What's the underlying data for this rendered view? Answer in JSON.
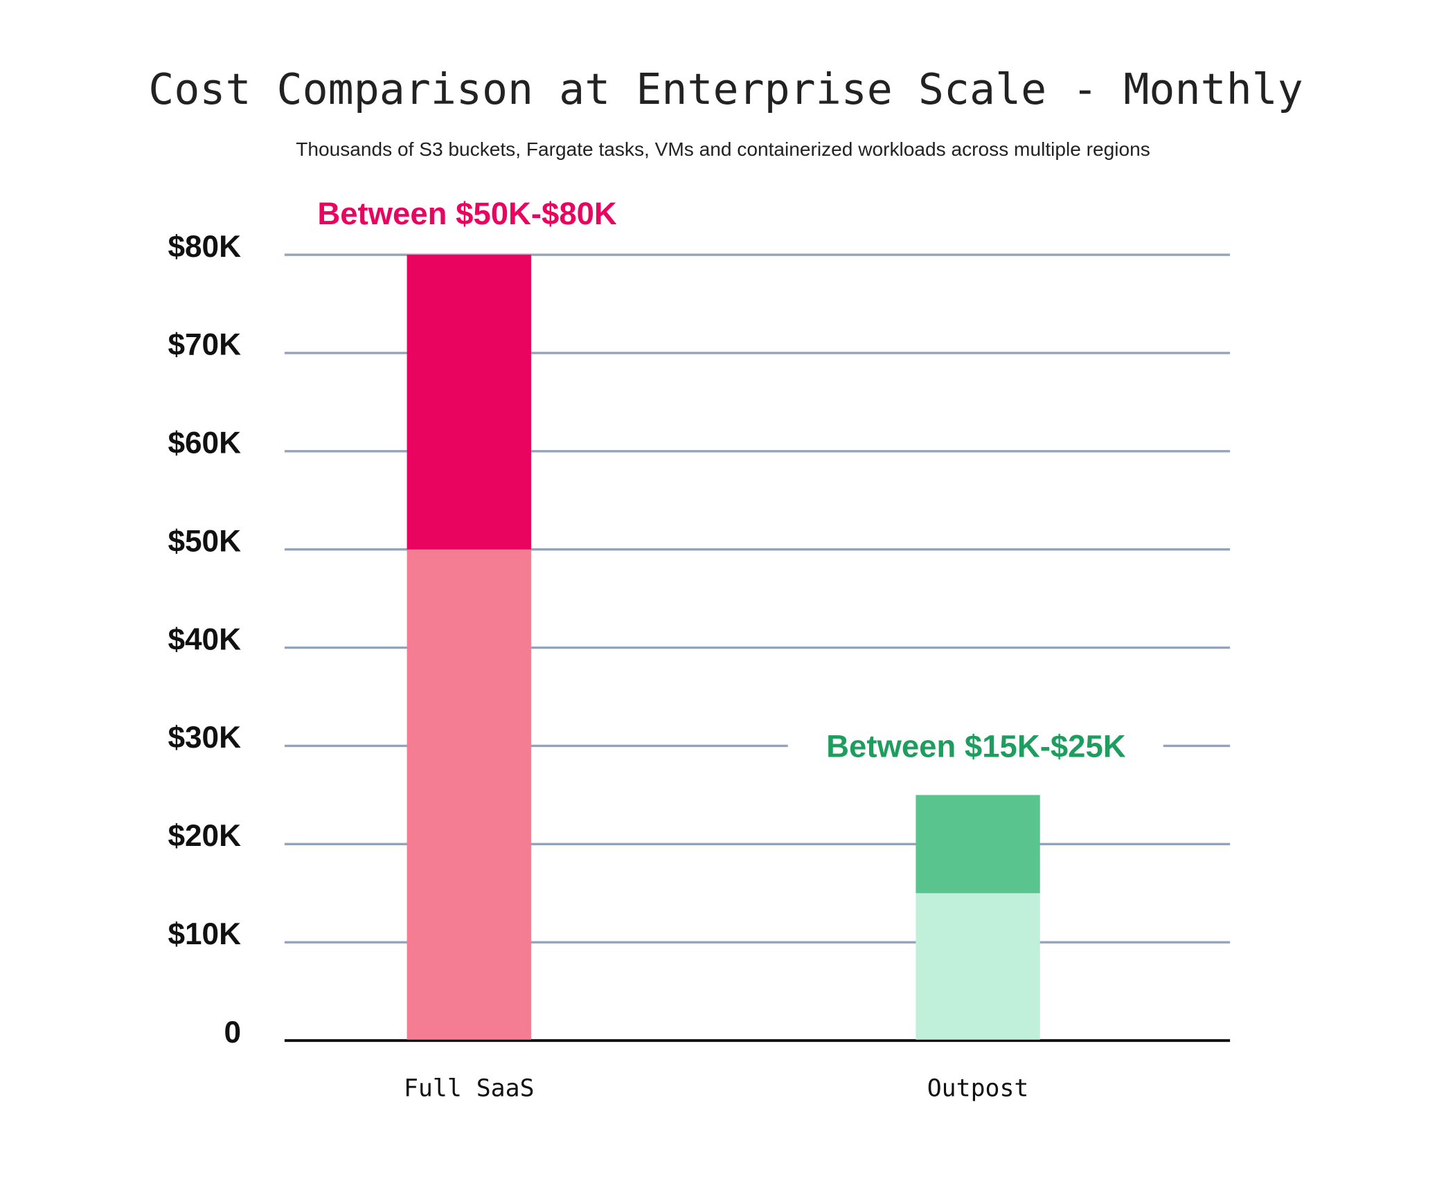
{
  "chart_data": {
    "type": "bar",
    "stacked": true,
    "title": "Cost Comparison at Enterprise Scale - Monthly",
    "subtitle": "Thousands of S3 buckets, Fargate tasks, VMs and containerized workloads across multiple regions",
    "xlabel": "",
    "ylabel": "",
    "ylim": [
      0,
      80
    ],
    "grid": true,
    "yticks": [
      {
        "value": 0,
        "label": "0"
      },
      {
        "value": 10,
        "label": "$10K"
      },
      {
        "value": 20,
        "label": "$20K"
      },
      {
        "value": 30,
        "label": "$30K"
      },
      {
        "value": 40,
        "label": "$40K"
      },
      {
        "value": 50,
        "label": "$50K"
      },
      {
        "value": 60,
        "label": "$60K"
      },
      {
        "value": 70,
        "label": "$70K"
      },
      {
        "value": 80,
        "label": "$80K"
      }
    ],
    "categories": [
      "Full SaaS",
      "Outpost"
    ],
    "bars": [
      {
        "category": "Full SaaS",
        "low": 50,
        "high": 80,
        "range_label": "Between $50K-$80K",
        "base_color": "#F47D93",
        "range_color": "#E8045F",
        "label_color": "#E8045F"
      },
      {
        "category": "Outpost",
        "low": 15,
        "high": 25,
        "range_label": "Between $15K-$25K",
        "base_color": "#C0F0DA",
        "range_color": "#59C48E",
        "label_color": "#1E9E5E"
      }
    ],
    "colors": {
      "grid": "#94A3B8",
      "axis": "#111111"
    }
  }
}
